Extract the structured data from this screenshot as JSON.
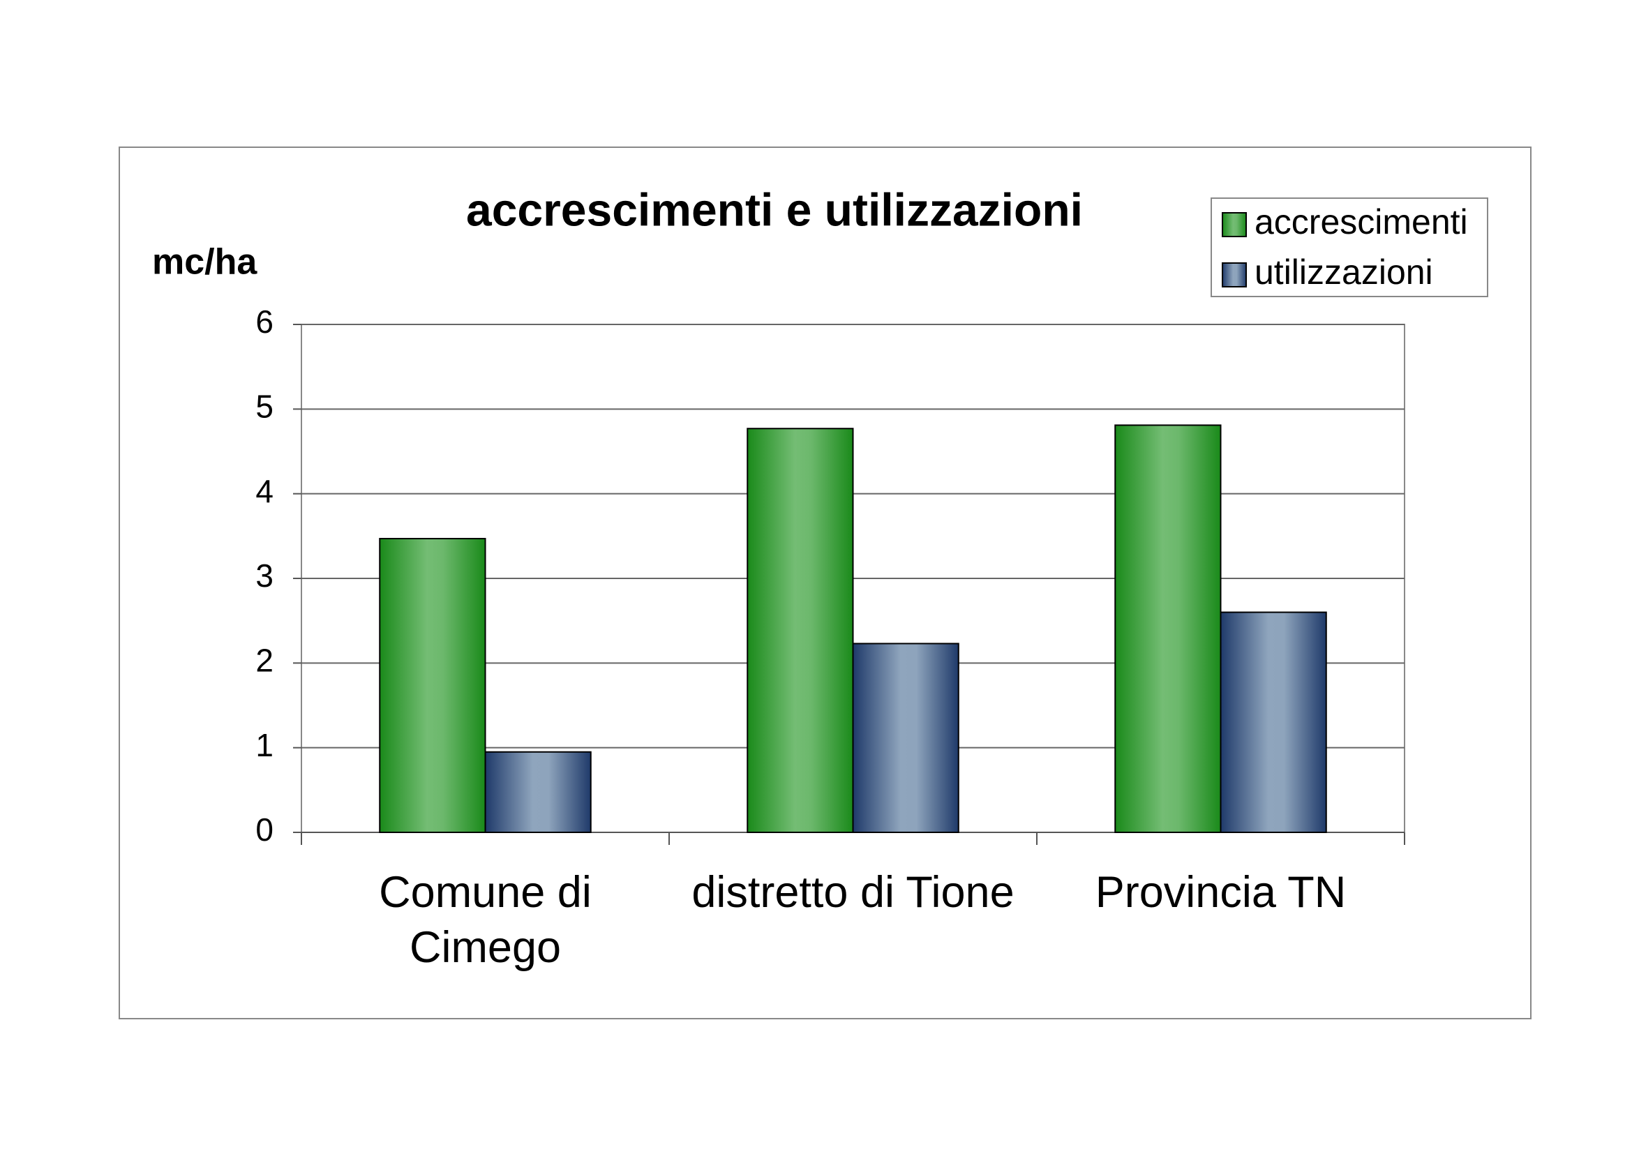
{
  "chart_data": {
    "type": "bar",
    "title": "accrescimenti e utilizzazioni",
    "y_label": "mc/ha",
    "categories": [
      "Comune di\nCimego",
      "distretto di Tione",
      "Provincia TN"
    ],
    "series": [
      {
        "name": "accrescimenti",
        "color": "#1a8a1a",
        "values": [
          3.47,
          4.77,
          4.81
        ]
      },
      {
        "name": "utilizzazioni",
        "color": "#1f3a6a",
        "values": [
          0.95,
          2.23,
          2.6
        ]
      }
    ],
    "ylim": [
      0,
      6
    ],
    "yticks": [
      0,
      1,
      2,
      3,
      4,
      5,
      6
    ],
    "grid": true,
    "legend": "top-right"
  }
}
